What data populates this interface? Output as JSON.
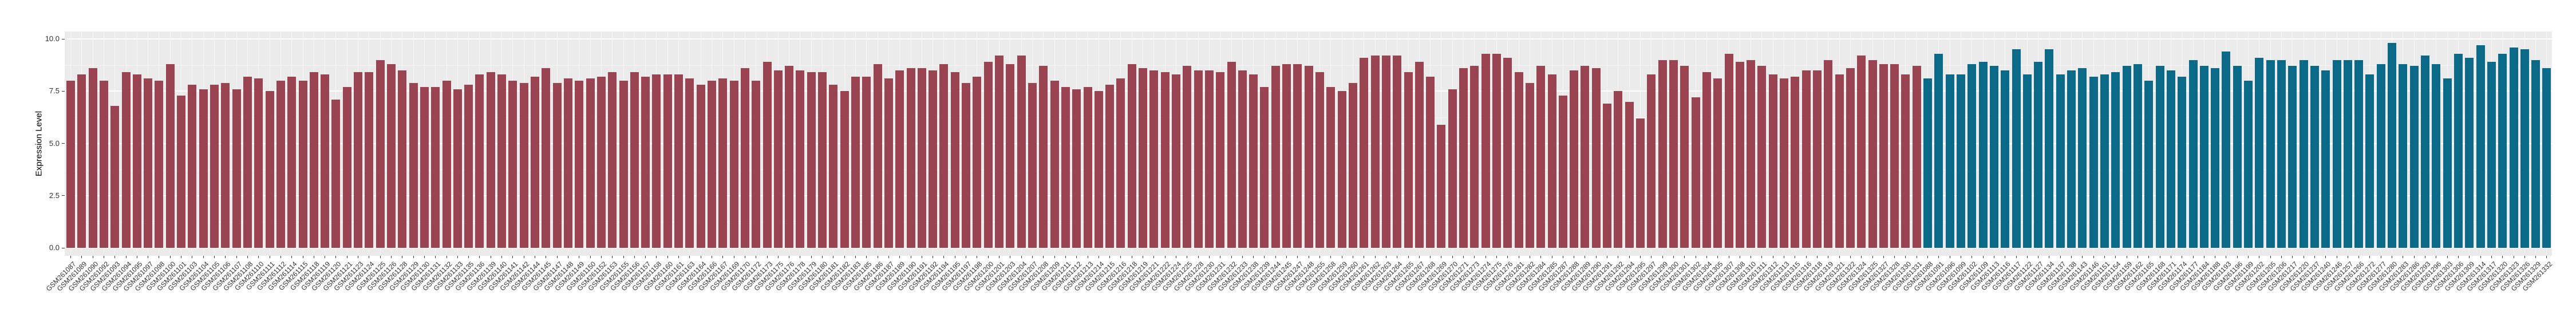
{
  "chart_data": {
    "type": "bar",
    "title": "",
    "xlabel": "",
    "ylabel": "Expression Level",
    "ylim": [
      0,
      10
    ],
    "yticks": [
      0,
      2.5,
      5,
      7.5,
      10
    ],
    "ytick_labels": [
      "0.0",
      "2.5",
      "5.0",
      "7.5",
      "10.0"
    ],
    "yticks_minor": [
      1.25,
      3.75,
      6.25,
      8.75
    ],
    "grid": "on",
    "legend_position": "none",
    "panel_background": "#EBEBEB",
    "gridline_color": "#FFFFFF",
    "axis_text_color": "#303030",
    "series": [
      {
        "name": "group-maroon",
        "color": "#9A4452",
        "categories": [
          "GSM261087",
          "GSM261089",
          "GSM261090",
          "GSM261092",
          "GSM261093",
          "GSM261094",
          "GSM261095",
          "GSM261097",
          "GSM261098",
          "GSM261100",
          "GSM261101",
          "GSM261103",
          "GSM261104",
          "GSM261105",
          "GSM261106",
          "GSM261107",
          "GSM261108",
          "GSM261110",
          "GSM261111",
          "GSM261112",
          "GSM261114",
          "GSM261115",
          "GSM261118",
          "GSM261119",
          "GSM261120",
          "GSM261121",
          "GSM261123",
          "GSM261124",
          "GSM261125",
          "GSM261126",
          "GSM261128",
          "GSM261129",
          "GSM261130",
          "GSM261131",
          "GSM261132",
          "GSM261133",
          "GSM261135",
          "GSM261136",
          "GSM261139",
          "GSM261140",
          "GSM261141",
          "GSM261142",
          "GSM261144",
          "GSM261145",
          "GSM261147",
          "GSM261148",
          "GSM261149",
          "GSM261150",
          "GSM261152",
          "GSM261153",
          "GSM261155",
          "GSM261156",
          "GSM261157",
          "GSM261158",
          "GSM261160",
          "GSM261161",
          "GSM261163",
          "GSM261164",
          "GSM261166",
          "GSM261167",
          "GSM261169",
          "GSM261170",
          "GSM261172",
          "GSM261173",
          "GSM261175",
          "GSM261176",
          "GSM261178",
          "GSM261179",
          "GSM261180",
          "GSM261181",
          "GSM261182",
          "GSM261183",
          "GSM261185",
          "GSM261186",
          "GSM261187",
          "GSM261189",
          "GSM261190",
          "GSM261191",
          "GSM261192",
          "GSM261194",
          "GSM261195",
          "GSM261197",
          "GSM261198",
          "GSM261200",
          "GSM261201",
          "GSM261203",
          "GSM261204",
          "GSM261207",
          "GSM261208",
          "GSM261209",
          "GSM261211",
          "GSM261212",
          "GSM261213",
          "GSM261214",
          "GSM261215",
          "GSM261216",
          "GSM261218",
          "GSM261219",
          "GSM261221",
          "GSM261222",
          "GSM261224",
          "GSM261225",
          "GSM261228",
          "GSM261230",
          "GSM261231",
          "GSM261232",
          "GSM261233",
          "GSM261238",
          "GSM261239",
          "GSM261244",
          "GSM261245",
          "GSM261247",
          "GSM261248",
          "GSM261255",
          "GSM261258",
          "GSM261259",
          "GSM261260",
          "GSM261261",
          "GSM261262",
          "GSM261263",
          "GSM261264",
          "GSM261265",
          "GSM261267",
          "GSM261268",
          "GSM261269",
          "GSM261270",
          "GSM261271",
          "GSM261273",
          "GSM261274",
          "GSM261275",
          "GSM261276",
          "GSM261281",
          "GSM261282",
          "GSM261284",
          "GSM261285",
          "GSM261287",
          "GSM261288",
          "GSM261289",
          "GSM261290",
          "GSM261291",
          "GSM261292",
          "GSM261294",
          "GSM261295",
          "GSM261297",
          "GSM261299",
          "GSM261300",
          "GSM261301",
          "GSM261302",
          "GSM261304",
          "GSM261305",
          "GSM261307",
          "GSM261308",
          "GSM261310",
          "GSM261311",
          "GSM261312",
          "GSM261313",
          "GSM261315",
          "GSM261316",
          "GSM261318",
          "GSM261319",
          "GSM261321",
          "GSM261322",
          "GSM261324",
          "GSM261325",
          "GSM261327",
          "GSM261328",
          "GSM261330",
          "GSM261331"
        ],
        "values": [
          8.0,
          8.3,
          8.6,
          8.0,
          6.8,
          8.4,
          8.3,
          8.1,
          8.0,
          8.8,
          7.3,
          7.8,
          7.6,
          7.8,
          7.9,
          7.6,
          8.2,
          8.1,
          7.5,
          8.0,
          8.2,
          8.0,
          8.4,
          8.3,
          7.1,
          7.7,
          8.4,
          8.4,
          9.0,
          8.8,
          8.5,
          7.9,
          7.7,
          7.7,
          8.0,
          7.6,
          7.8,
          8.3,
          8.4,
          8.3,
          8.0,
          7.9,
          8.2,
          8.6,
          7.9,
          8.1,
          8.0,
          8.1,
          8.2,
          8.4,
          8.0,
          8.4,
          8.2,
          8.3,
          8.3,
          8.3,
          8.1,
          7.8,
          8.0,
          8.1,
          8.0,
          8.6,
          8.0,
          8.9,
          8.5,
          8.7,
          8.5,
          8.4,
          8.4,
          7.8,
          7.5,
          8.2,
          8.2,
          8.8,
          8.1,
          8.5,
          8.6,
          8.6,
          8.5,
          8.8,
          8.4,
          7.9,
          8.2,
          8.9,
          9.2,
          8.8,
          9.2,
          7.9,
          8.7,
          8.0,
          7.7,
          7.6,
          7.7,
          7.5,
          7.8,
          8.1,
          8.8,
          8.6,
          8.5,
          8.4,
          8.3,
          8.7,
          8.5,
          8.5,
          8.4,
          8.9,
          8.5,
          8.3,
          7.7,
          8.7,
          8.8,
          8.8,
          8.7,
          8.4,
          7.7,
          7.5,
          7.9,
          9.1,
          9.2,
          9.2,
          9.2,
          8.4,
          8.9,
          8.2,
          5.9,
          7.6,
          8.6,
          8.7,
          9.3,
          9.3,
          9.1,
          8.4,
          7.9,
          8.7,
          8.3,
          7.3,
          8.5,
          8.7,
          8.6,
          6.9,
          7.5,
          7.0,
          6.2,
          8.3,
          9.0,
          9.0,
          8.7,
          7.2,
          8.4,
          8.1,
          9.3,
          8.9,
          9.0,
          8.7,
          8.3,
          8.1,
          8.2,
          8.5,
          8.5,
          9.0,
          8.3,
          8.6,
          9.2,
          9.0,
          8.8,
          8.8,
          8.3,
          8.7
        ]
      },
      {
        "name": "group-teal",
        "color": "#0B6A88",
        "categories": [
          "GSM261088",
          "GSM261091",
          "GSM261096",
          "GSM261099",
          "GSM261102",
          "GSM261109",
          "GSM261113",
          "GSM261116",
          "GSM261117",
          "GSM261122",
          "GSM261127",
          "GSM261134",
          "GSM261137",
          "GSM261138",
          "GSM261143",
          "GSM261146",
          "GSM261151",
          "GSM261154",
          "GSM261159",
          "GSM261162",
          "GSM261165",
          "GSM261168",
          "GSM261171",
          "GSM261174",
          "GSM261177",
          "GSM261184",
          "GSM261188",
          "GSM261193",
          "GSM261196",
          "GSM261199",
          "GSM261202",
          "GSM261205",
          "GSM261206",
          "GSM261217",
          "GSM261220",
          "GSM261237",
          "GSM261240",
          "GSM261246",
          "GSM261257",
          "GSM261266",
          "GSM261272",
          "GSM261277",
          "GSM261280",
          "GSM261283",
          "GSM261286",
          "GSM261293",
          "GSM261296",
          "GSM261303",
          "GSM261306",
          "GSM261309",
          "GSM261314",
          "GSM261317",
          "GSM261320",
          "GSM261323",
          "GSM261326",
          "GSM261329",
          "GSM261332"
        ],
        "values": [
          8.1,
          9.3,
          8.3,
          8.3,
          8.8,
          8.9,
          8.7,
          8.5,
          9.5,
          8.3,
          8.9,
          9.5,
          8.3,
          8.5,
          8.6,
          8.2,
          8.3,
          8.4,
          8.7,
          8.8,
          8.0,
          8.7,
          8.5,
          8.2,
          9.0,
          8.7,
          8.6,
          9.4,
          8.7,
          8.0,
          9.1,
          9.0,
          9.0,
          8.7,
          9.0,
          8.7,
          8.5,
          9.0,
          9.0,
          9.0,
          8.3,
          8.8,
          9.8,
          8.8,
          8.7,
          9.2,
          8.8,
          8.1,
          9.3,
          9.1,
          9.7,
          8.9,
          9.3,
          9.6,
          9.5,
          9.0,
          8.6
        ]
      }
    ]
  }
}
